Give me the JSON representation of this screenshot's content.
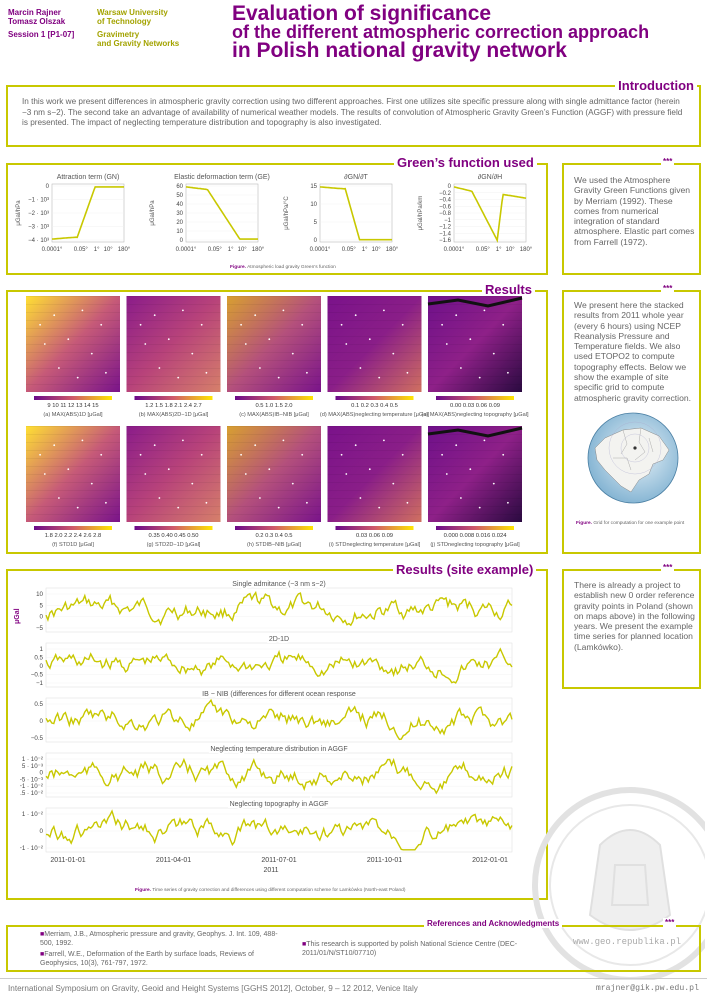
{
  "header": {
    "authors": [
      "Marcin Rajner",
      "Tomasz Olszak"
    ],
    "session": "Session 1 [P1-07]",
    "affiliation": [
      "Warsaw University",
      "of Technology"
    ],
    "division": [
      "Gravimetry",
      "and Gravity Networks"
    ],
    "title": [
      "Evaluation of significance",
      "of the different atmospheric correction approach",
      "in Polish national gravity network"
    ]
  },
  "intro": {
    "heading": "Introduction",
    "text": "In this work we present differences in atmospheric gravity correction using two different approaches. First one utilizes site specific pressure along with single admittance factor (herein −3 nm s−2). The second take an advantage of availability of numerical weather models. The results of  convolution of Atmospheric Gravity Green’s Function (AGGF) with pressure field is presented. The impact of neglecting temperature distribution and topography is also investigated."
  },
  "greens": {
    "heading": "Green’s function used",
    "caption_label": "Figure.",
    "caption": "Atmospheric load gravity Green’s function",
    "plots": [
      {
        "title": "Attraction term (GN)",
        "ylabel": "μGal/hPa",
        "yticks": [
          "0",
          "−1 · 10³",
          "−2 · 10³",
          "−3 · 10³",
          "−4 · 10³"
        ],
        "xticks": [
          "0.0001°",
          "0.05°",
          "1°",
          "10°",
          "180°"
        ]
      },
      {
        "title": "Elastic deformaction term (GE)",
        "ylabel": "μGal/hPa",
        "yticks": [
          "60",
          "50",
          "40",
          "30",
          "20",
          "10",
          "0"
        ],
        "xticks": [
          "0.0001°",
          "0.05°",
          "1°",
          "10°",
          "180°"
        ]
      },
      {
        "title": "∂GN/∂T",
        "ylabel": "μGal/hPa/°C",
        "yticks": [
          "15",
          "10",
          "5",
          "0"
        ],
        "xticks": [
          "0.0001°",
          "0.05°",
          "1°",
          "10°",
          "180°"
        ]
      },
      {
        "title": "∂GN/∂H",
        "ylabel": "μGal/hPa/km",
        "yticks": [
          "0",
          "−0.2",
          "−0.4",
          "−0.6",
          "−0.8",
          "−1",
          "−1.2",
          "−1.4",
          "−1.6"
        ],
        "xticks": [
          "0.0001°",
          "0.05°",
          "1°",
          "10°",
          "180°"
        ]
      }
    ],
    "side_stars": "***",
    "side_text": "We used the Atmosphere Gravity Green Functions given by Merriam (1992). These comes from numerical integration of standard atmosphere. Elastic part comes from Farrell (1972)."
  },
  "results": {
    "heading": "Results",
    "maps_row1": [
      {
        "ticks": "9   10   11   12   13   14   15",
        "caption": "(a) MAX(ABS)1D [μGal]"
      },
      {
        "ticks": "1.2  1.5  1.8  2.1  2.4  2.7",
        "caption": "(b) MAX(ABS)2D−1D [μGal]"
      },
      {
        "ticks": "0.5     1.0     1.5     2.0",
        "caption": "(c) MAX(ABS)IB−NIB [μGal]"
      },
      {
        "ticks": "0.1  0.2  0.3  0.4  0.5",
        "caption": "(d) MAX(ABS)neglecting temperature [μGal]"
      },
      {
        "ticks": "0.00    0.03    0.06    0.09",
        "caption": "(e) MAX(ABS)neglecting topography [μGal]"
      }
    ],
    "maps_row2": [
      {
        "ticks": "1.8  2.0  2.2  2.4  2.6  2.8",
        "caption": "(f) STD1D [μGal]"
      },
      {
        "ticks": "0.35    0.40    0.45    0.50",
        "caption": "(g) STD2D−1D [μGal]"
      },
      {
        "ticks": "0.2   0.3   0.4   0.5",
        "caption": "(h) STDIB−NIB [μGal]"
      },
      {
        "ticks": "0.03    0.06    0.09",
        "caption": "(i) STDneglecting temperature [μGal]"
      },
      {
        "ticks": "0.000  0.008  0.016  0.024",
        "caption": "(j) STDneglecting topography [μGal]"
      }
    ],
    "side_stars": "***",
    "side_text": "We present here the stacked results from 2011 whole year (every 6 hours) using NCEP Reanalysis Pressure and Temperature fields. We also used ETOPO2 to compute topography effects. Below we show the example of site specific grid to compute atmospheric gravity correction.",
    "globe_caption_label": "Figure.",
    "globe_caption": "Grid for computation for one example point"
  },
  "site": {
    "heading": "Results (site example)",
    "ylabel": "μGal",
    "panels": [
      {
        "title": "Single admitance (−3 nm s−2)",
        "yticks": [
          "10",
          "5",
          "0",
          "−5"
        ]
      },
      {
        "title": "2D-1D",
        "yticks": [
          "1",
          "0.5",
          "0",
          "−0.5",
          "−1"
        ]
      },
      {
        "title": "IB − NIB (differences for different ocean response",
        "yticks": [
          "0.5",
          "0",
          "−0.5"
        ]
      },
      {
        "title": "Neglecting temperature distribution in AGGF",
        "yticks": [
          "1 · 10⁻²",
          "5 · 10⁻³",
          "0",
          "−5 · 10⁻³",
          "−1 · 10⁻²",
          "−1.5 · 10⁻²"
        ]
      },
      {
        "title": "Neglecting topography in AGGF",
        "yticks": [
          "1 · 10⁻²",
          "0",
          "−1 · 10⁻²"
        ]
      }
    ],
    "xticks": [
      "2011-01-01",
      "2011-04-01",
      "2011-07-01",
      "2011-10-01",
      "2012-01-01"
    ],
    "xlabel": "2011",
    "caption_label": "Figure.",
    "caption": "Time series of gravity correction and differences using different computation scheme for Lamkówko (North-east Poland)",
    "side_stars": "***",
    "side_text": "There is already a project to establish new 0 order reference gravity points in Poland (shown on maps above) in the following years. We present the example time series for planned location (Lamkówko)."
  },
  "refs": {
    "heading": "References and Acknowledgments",
    "items": [
      "Merriam, J.B., Atmospheric pressure and gravity, Geophys. J. Int. 109, 488-500, 1992.",
      "Farrell, W.E., Deformation of the Earth by surface loads, Reviews of Geophysics, 10(3), 761-797, 1972."
    ],
    "ack": "This research is supported by polish National Science Centre (DEC-2011/01/N/ST10/07710)",
    "stars": "***",
    "watermark_url": "www.geo.republika.pl"
  },
  "footer": {
    "text": "International Symposium on Gravity, Geoid and Height Systems [GGHS 2012], October, 9 – 12 2012, Venice Italy",
    "email": "mrajner@gik.pw.edu.pl"
  },
  "colors": {
    "accent": "#800080",
    "olive": "#c8c800",
    "line": "#c8c800",
    "text": "#666666"
  }
}
